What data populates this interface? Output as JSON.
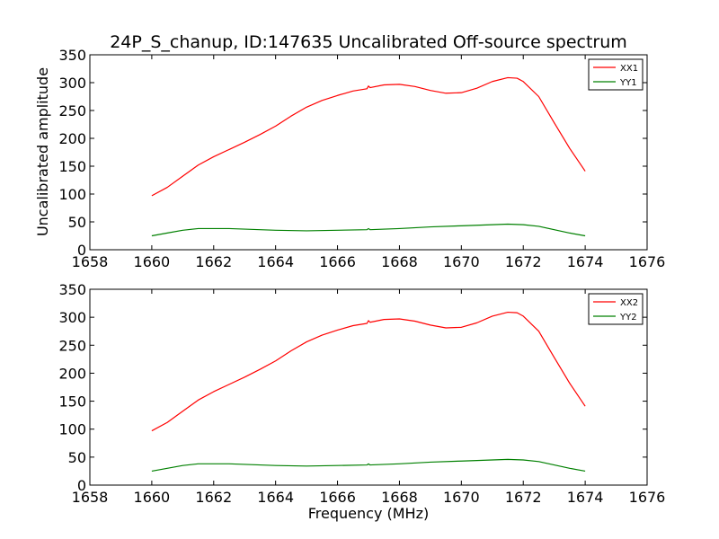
{
  "title": "24P_S_chanup, ID:147635 Uncalibrated Off-source spectrum",
  "ylabel": "Uncalibrated amplitude",
  "xlabel": "Frequency (MHz)",
  "colors": {
    "xx": "#ff0000",
    "yy": "#008000",
    "axes": "#000000",
    "background": "#ffffff"
  },
  "chart_data": [
    {
      "type": "line",
      "xlim": [
        1658,
        1676
      ],
      "ylim": [
        0,
        350
      ],
      "xticks": [
        1658,
        1660,
        1662,
        1664,
        1666,
        1668,
        1670,
        1672,
        1674,
        1676
      ],
      "yticks": [
        0,
        50,
        100,
        150,
        200,
        250,
        300,
        350
      ],
      "legend_position": "upper-right",
      "series": [
        {
          "name": "XX1",
          "color": "#ff0000",
          "x": [
            1660,
            1660.5,
            1661,
            1661.5,
            1662,
            1662.5,
            1663,
            1663.5,
            1664,
            1664.5,
            1665,
            1665.5,
            1666,
            1666.5,
            1666.95,
            1667,
            1667.05,
            1667.5,
            1668,
            1668.5,
            1669,
            1669.5,
            1670,
            1670.5,
            1671,
            1671.5,
            1671.8,
            1672,
            1672.5,
            1673,
            1673.5,
            1674
          ],
          "values": [
            97,
            112,
            132,
            152,
            167,
            180,
            193,
            207,
            222,
            240,
            256,
            268,
            277,
            285,
            289,
            294,
            291,
            296,
            297,
            293,
            286,
            281,
            282,
            290,
            302,
            309,
            308,
            302,
            275,
            228,
            182,
            141
          ]
        },
        {
          "name": "YY1",
          "color": "#008000",
          "x": [
            1660,
            1660.5,
            1661,
            1661.5,
            1662,
            1662.5,
            1663,
            1664,
            1665,
            1666,
            1666.95,
            1667,
            1667.05,
            1668,
            1669,
            1670,
            1671,
            1671.5,
            1672,
            1672.5,
            1673,
            1673.5,
            1674
          ],
          "values": [
            25,
            30,
            35,
            38,
            38,
            38,
            37,
            35,
            34,
            35,
            36,
            38,
            36,
            38,
            41,
            43,
            45,
            46,
            45,
            42,
            36,
            30,
            25
          ]
        }
      ]
    },
    {
      "type": "line",
      "xlim": [
        1658,
        1676
      ],
      "ylim": [
        0,
        350
      ],
      "xticks": [
        1658,
        1660,
        1662,
        1664,
        1666,
        1668,
        1670,
        1672,
        1674,
        1676
      ],
      "yticks": [
        0,
        50,
        100,
        150,
        200,
        250,
        300,
        350
      ],
      "legend_position": "upper-right",
      "series": [
        {
          "name": "XX2",
          "color": "#ff0000",
          "x": [
            1660,
            1660.5,
            1661,
            1661.5,
            1662,
            1662.5,
            1663,
            1663.5,
            1664,
            1664.5,
            1665,
            1665.5,
            1666,
            1666.5,
            1666.95,
            1667,
            1667.05,
            1667.5,
            1668,
            1668.5,
            1669,
            1669.5,
            1670,
            1670.5,
            1671,
            1671.5,
            1671.8,
            1672,
            1672.5,
            1673,
            1673.5,
            1674
          ],
          "values": [
            97,
            112,
            132,
            152,
            167,
            180,
            193,
            207,
            222,
            240,
            256,
            268,
            277,
            285,
            289,
            294,
            291,
            296,
            297,
            293,
            286,
            281,
            282,
            290,
            302,
            309,
            308,
            302,
            275,
            228,
            182,
            141
          ]
        },
        {
          "name": "YY2",
          "color": "#008000",
          "x": [
            1660,
            1660.5,
            1661,
            1661.5,
            1662,
            1662.5,
            1663,
            1664,
            1665,
            1666,
            1666.95,
            1667,
            1667.05,
            1668,
            1669,
            1670,
            1671,
            1671.5,
            1672,
            1672.5,
            1673,
            1673.5,
            1674
          ],
          "values": [
            25,
            30,
            35,
            38,
            38,
            38,
            37,
            35,
            34,
            35,
            36,
            38,
            36,
            38,
            41,
            43,
            45,
            46,
            45,
            42,
            36,
            30,
            25
          ]
        }
      ]
    }
  ]
}
